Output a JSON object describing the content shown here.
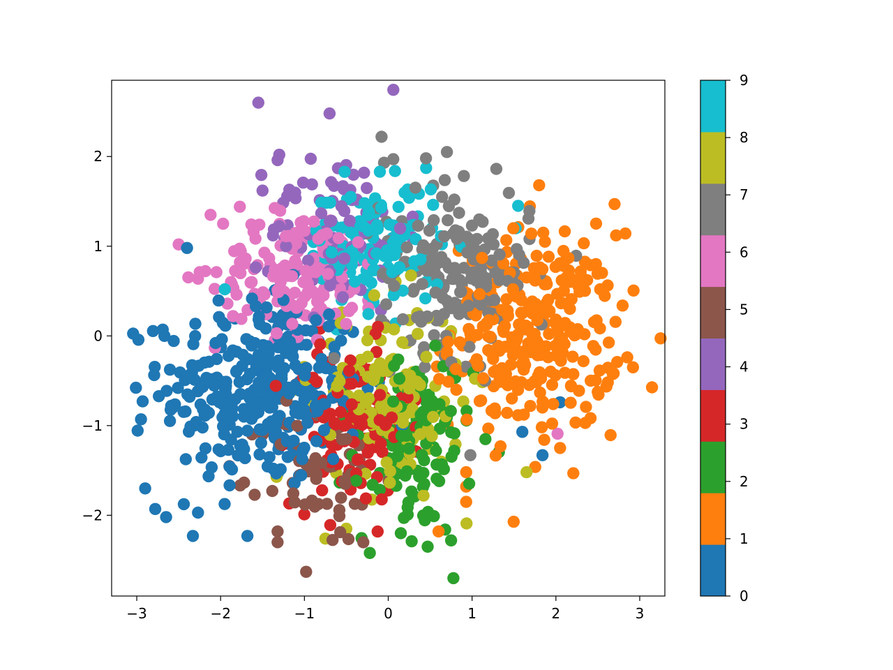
{
  "chart_data": {
    "type": "scatter",
    "title": "",
    "xlabel": "",
    "ylabel": "",
    "xlim": [
      -3.3,
      3.3
    ],
    "ylim": [
      -2.9,
      2.85
    ],
    "x_ticks": [
      -3,
      -2,
      -1,
      0,
      1,
      2,
      3
    ],
    "x_tick_labels": [
      "−3",
      "−2",
      "−1",
      "0",
      "1",
      "2",
      "3"
    ],
    "y_ticks": [
      -2,
      -1,
      0,
      1,
      2
    ],
    "y_tick_labels": [
      "−2",
      "−1",
      "0",
      "1",
      "2"
    ],
    "grid": false,
    "colorbar": {
      "ticks": [
        0,
        1,
        2,
        3,
        4,
        5,
        6,
        7,
        8,
        9
      ],
      "tick_labels": [
        "0",
        "1",
        "2",
        "3",
        "4",
        "5",
        "6",
        "7",
        "8",
        "9"
      ],
      "range": [
        0,
        9
      ],
      "colors": [
        "#1f77b4",
        "#ff7f0e",
        "#2ca02c",
        "#d62728",
        "#9467bd",
        "#8c564b",
        "#e377c2",
        "#7f7f7f",
        "#bcbd22",
        "#17becf"
      ]
    },
    "clusters": [
      {
        "label": 0,
        "center": [
          -1.5,
          -0.6
        ],
        "spread": [
          0.6,
          0.55
        ],
        "count": 330,
        "color": "#1f77b4"
      },
      {
        "label": 1,
        "center": [
          1.75,
          0.05
        ],
        "spread": [
          0.5,
          0.55
        ],
        "count": 300,
        "color": "#ff7f0e"
      },
      {
        "label": 2,
        "center": [
          0.3,
          -1.2
        ],
        "spread": [
          0.35,
          0.5
        ],
        "count": 120,
        "color": "#2ca02c"
      },
      {
        "label": 3,
        "center": [
          -0.45,
          -1.0
        ],
        "spread": [
          0.35,
          0.45
        ],
        "count": 120,
        "color": "#d62728"
      },
      {
        "label": 4,
        "center": [
          -0.6,
          1.2
        ],
        "spread": [
          0.4,
          0.45
        ],
        "count": 90,
        "color": "#9467bd"
      },
      {
        "label": 5,
        "center": [
          -0.8,
          -1.55
        ],
        "spread": [
          0.35,
          0.4
        ],
        "count": 60,
        "color": "#8c564b"
      },
      {
        "label": 6,
        "center": [
          -1.05,
          0.7
        ],
        "spread": [
          0.5,
          0.35
        ],
        "count": 160,
        "color": "#e377c2"
      },
      {
        "label": 7,
        "center": [
          0.8,
          0.7
        ],
        "spread": [
          0.45,
          0.45
        ],
        "count": 180,
        "color": "#7f7f7f"
      },
      {
        "label": 8,
        "center": [
          0.0,
          -0.65
        ],
        "spread": [
          0.45,
          0.5
        ],
        "count": 150,
        "color": "#bcbd22"
      },
      {
        "label": 9,
        "center": [
          -0.15,
          1.0
        ],
        "spread": [
          0.4,
          0.35
        ],
        "count": 150,
        "color": "#17becf"
      }
    ],
    "outliers": [
      {
        "label": 4,
        "x": -1.55,
        "y": 2.6
      },
      {
        "label": 4,
        "x": -0.7,
        "y": 2.48
      },
      {
        "label": 4,
        "x": -1.3,
        "y": 2.02
      },
      {
        "label": 4,
        "x": -1.32,
        "y": 1.96
      },
      {
        "label": 4,
        "x": -1.5,
        "y": 1.62
      },
      {
        "label": 4,
        "x": -1.18,
        "y": 1.63
      },
      {
        "label": 7,
        "x": -0.08,
        "y": 2.22
      },
      {
        "label": 7,
        "x": 0.7,
        "y": 2.05
      },
      {
        "label": 7,
        "x": 0.45,
        "y": 1.98
      },
      {
        "label": 7,
        "x": 0.06,
        "y": 1.97
      },
      {
        "label": 7,
        "x": -0.05,
        "y": 1.93
      },
      {
        "label": 9,
        "x": -0.1,
        "y": 1.83
      },
      {
        "label": 6,
        "x": -2.5,
        "y": 1.02
      },
      {
        "label": 6,
        "x": -2.25,
        "y": 0.71
      },
      {
        "label": 6,
        "x": -2.12,
        "y": 1.35
      },
      {
        "label": 6,
        "x": -1.77,
        "y": 1.44
      },
      {
        "label": 6,
        "x": -1.97,
        "y": 1.25
      },
      {
        "label": 6,
        "x": -1.63,
        "y": 0.6
      },
      {
        "label": 9,
        "x": -1.95,
        "y": 0.52
      },
      {
        "label": 0,
        "x": -2.4,
        "y": 0.98
      },
      {
        "label": 1,
        "x": 1.8,
        "y": 1.68
      },
      {
        "label": 1,
        "x": 2.7,
        "y": 1.47
      },
      {
        "label": 1,
        "x": 2.92,
        "y": -0.35
      },
      {
        "label": 1,
        "x": 2.35,
        "y": -0.97
      },
      {
        "label": 1,
        "x": 2.05,
        "y": -1.25
      },
      {
        "label": 9,
        "x": 1.55,
        "y": 1.45
      },
      {
        "label": 9,
        "x": 1.52,
        "y": 1.2
      },
      {
        "label": 0,
        "x": 1.84,
        "y": -1.33
      },
      {
        "label": 0,
        "x": 1.6,
        "y": -1.07
      },
      {
        "label": 0,
        "x": 2.05,
        "y": -0.74
      },
      {
        "label": 6,
        "x": 2.02,
        "y": -1.09
      },
      {
        "label": 8,
        "x": 1.65,
        "y": -1.52
      },
      {
        "label": 7,
        "x": 0.98,
        "y": -1.33
      },
      {
        "label": 1,
        "x": 0.93,
        "y": -1.52
      },
      {
        "label": 1,
        "x": 0.93,
        "y": -1.68
      },
      {
        "label": 1,
        "x": 0.93,
        "y": -1.85
      },
      {
        "label": 0,
        "x": -2.95,
        "y": -0.93
      },
      {
        "label": 0,
        "x": -2.93,
        "y": -0.73
      },
      {
        "label": 0,
        "x": -2.9,
        "y": -1.7
      },
      {
        "label": 0,
        "x": -2.78,
        "y": -1.93
      },
      {
        "label": 0,
        "x": -2.65,
        "y": -2.02
      },
      {
        "label": 0,
        "x": -2.33,
        "y": -2.23
      },
      {
        "label": 0,
        "x": -2.27,
        "y": -1.97
      },
      {
        "label": 0,
        "x": -1.68,
        "y": -2.23
      },
      {
        "label": 0,
        "x": -2.69,
        "y": 0.07
      },
      {
        "label": 0,
        "x": -2.67,
        "y": -0.0
      },
      {
        "label": 5,
        "x": -0.98,
        "y": -2.63
      },
      {
        "label": 5,
        "x": -1.32,
        "y": -2.3
      },
      {
        "label": 5,
        "x": -1.32,
        "y": -2.18
      },
      {
        "label": 2,
        "x": -0.22,
        "y": -2.42
      },
      {
        "label": 2,
        "x": 0.47,
        "y": -2.35
      },
      {
        "label": 2,
        "x": 0.28,
        "y": -2.29
      },
      {
        "label": 2,
        "x": 0.75,
        "y": -2.28
      },
      {
        "label": 2,
        "x": 0.15,
        "y": -2.2
      },
      {
        "label": 8,
        "x": -0.75,
        "y": -2.26
      },
      {
        "label": 8,
        "x": -0.5,
        "y": -2.15
      },
      {
        "label": 1,
        "x": 0.6,
        "y": -2.18
      }
    ]
  }
}
